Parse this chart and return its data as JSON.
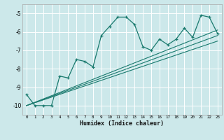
{
  "title": "",
  "xlabel": "Humidex (Indice chaleur)",
  "ylabel": "",
  "bg_color": "#cce8ea",
  "line_color": "#1a7a6e",
  "grid_color": "#ffffff",
  "ylim": [
    -10.5,
    -4.5
  ],
  "xlim": [
    -0.5,
    23.5
  ],
  "yticks": [
    -10,
    -9,
    -8,
    -7,
    -6,
    -5
  ],
  "xticks": [
    0,
    1,
    2,
    3,
    4,
    5,
    6,
    7,
    8,
    9,
    10,
    11,
    12,
    13,
    14,
    15,
    16,
    17,
    18,
    19,
    20,
    21,
    22,
    23
  ],
  "main_x": [
    0,
    1,
    2,
    3,
    4,
    5,
    6,
    7,
    8,
    9,
    10,
    11,
    12,
    13,
    14,
    15,
    16,
    17,
    18,
    19,
    20,
    21,
    22,
    23
  ],
  "main_y": [
    -9.4,
    -10.0,
    -10.0,
    -10.0,
    -8.4,
    -8.5,
    -7.5,
    -7.6,
    -7.9,
    -6.2,
    -5.7,
    -5.2,
    -5.2,
    -5.6,
    -6.8,
    -7.0,
    -6.4,
    -6.7,
    -6.4,
    -5.8,
    -6.3,
    -5.1,
    -5.2,
    -6.1
  ],
  "line1_x": [
    0,
    23
  ],
  "line1_y": [
    -10.0,
    -5.9
  ],
  "line2_x": [
    0,
    23
  ],
  "line2_y": [
    -10.0,
    -6.2
  ],
  "line3_x": [
    0,
    23
  ],
  "line3_y": [
    -10.0,
    -6.5
  ]
}
